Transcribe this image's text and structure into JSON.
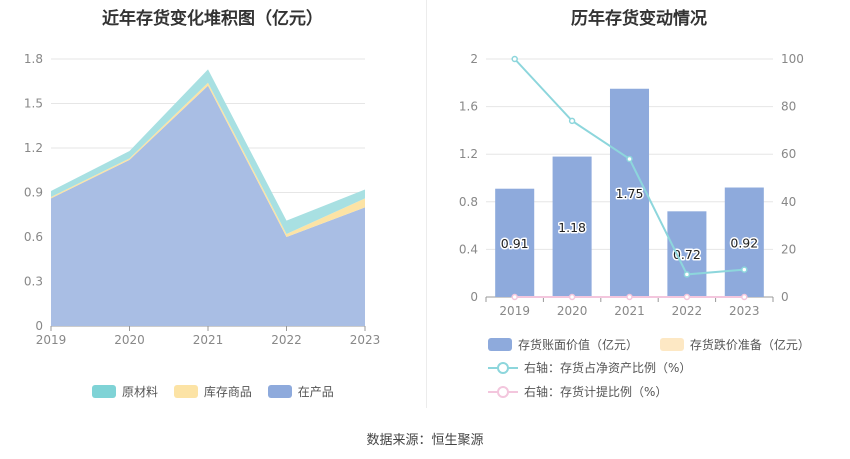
{
  "left": {
    "title": "近年存货变化堆积图（亿元）",
    "legend": [
      {
        "label": "原材料",
        "color": "#7fd3d6"
      },
      {
        "label": "库存商品",
        "color": "#fce3a5"
      },
      {
        "label": "在产品",
        "color": "#8eaadc"
      }
    ]
  },
  "right": {
    "title": "历年存货变动情况",
    "legend": [
      {
        "label": "存货账面价值（亿元）",
        "color": "#8eaadc"
      },
      {
        "label": "存货跌价准备（亿元）",
        "color": "#fde8c4"
      },
      {
        "label": "右轴：存货占净资产比例（%）",
        "color": "#8dd6dc"
      },
      {
        "label": "右轴：存货计提比例（%）",
        "color": "#f3c6dd"
      }
    ]
  },
  "source": "数据来源：恒生聚源",
  "chart_data": [
    {
      "type": "area",
      "stacked": true,
      "title": "近年存货变化堆积图（亿元）",
      "categories": [
        "2019",
        "2020",
        "2021",
        "2022",
        "2023"
      ],
      "series": [
        {
          "name": "在产品",
          "values": [
            0.86,
            1.12,
            1.62,
            0.6,
            0.8
          ],
          "color": "#a9bee4"
        },
        {
          "name": "库存商品",
          "values": [
            0.01,
            0.01,
            0.02,
            0.02,
            0.06
          ],
          "color": "#fce3a5"
        },
        {
          "name": "原材料",
          "values": [
            0.04,
            0.05,
            0.09,
            0.09,
            0.06
          ],
          "color": "#a8e0e2"
        }
      ],
      "ylim": [
        0,
        1.8
      ],
      "yticks": [
        "0",
        "0.3",
        "0.6",
        "0.9",
        "1.2",
        "1.5",
        "1.8"
      ],
      "grid": true,
      "legend_position": "bottom"
    },
    {
      "type": "bar",
      "title": "历年存货变动情况",
      "categories": [
        "2019",
        "2020",
        "2021",
        "2022",
        "2023"
      ],
      "series": [
        {
          "name": "存货账面价值（亿元）",
          "values": [
            0.91,
            1.18,
            1.75,
            0.72,
            0.92
          ],
          "labels": [
            "0.91",
            "1.18",
            "1.75",
            "0.72",
            "0.92"
          ],
          "color": "#8eaadc"
        },
        {
          "name": "存货跌价准备（亿元）",
          "values": [
            0,
            0,
            0,
            0,
            0
          ],
          "color": "#fde8c4"
        },
        {
          "name": "右轴：存货占净资产比例（%）",
          "axis": "right",
          "type": "line",
          "values": [
            100,
            74,
            58,
            9.5,
            11.5
          ],
          "color": "#8dd6dc"
        },
        {
          "name": "右轴：存货计提比例（%）",
          "axis": "right",
          "type": "line",
          "values": [
            0,
            0,
            0,
            0,
            0
          ],
          "color": "#f3c6dd"
        }
      ],
      "ylim": [
        0,
        2
      ],
      "yticks": [
        "0",
        "0.4",
        "0.8",
        "1.2",
        "1.6",
        "2"
      ],
      "y2lim": [
        0,
        100
      ],
      "y2ticks": [
        "0",
        "20",
        "40",
        "60",
        "80",
        "100"
      ],
      "grid": true,
      "legend_position": "bottom"
    }
  ]
}
